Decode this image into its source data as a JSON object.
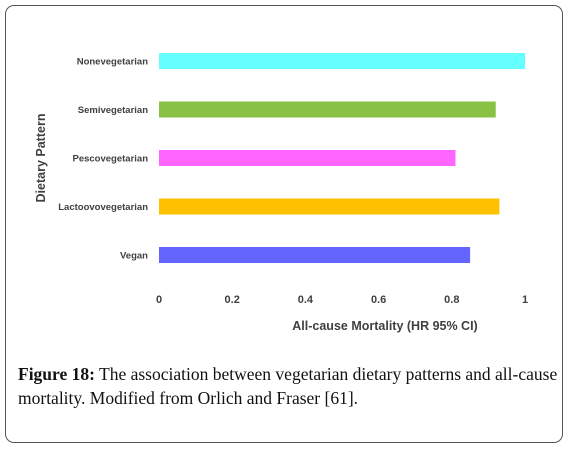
{
  "chart_data": {
    "type": "bar",
    "orientation": "horizontal",
    "categories": [
      "Nonevegetarian",
      "Semivegetarian",
      "Pescovegetarian",
      "Lactoovovegetarian",
      "Vegan"
    ],
    "values": [
      1.0,
      0.92,
      0.81,
      0.93,
      0.85
    ],
    "colors": [
      "#66ffff",
      "#88c144",
      "#ff66ff",
      "#ffc000",
      "#6464ff"
    ],
    "xlabel": "All-cause Mortality (HR 95% CI)",
    "ylabel": "Dietary Pattern",
    "xlim": [
      0,
      1
    ],
    "xticks": [
      0,
      0.2,
      0.4,
      0.6,
      0.8,
      1
    ],
    "xtick_labels": [
      "0",
      "0.2",
      "0.4",
      "0.6",
      "0.8",
      "1"
    ],
    "grid": false,
    "legend": "none"
  },
  "caption": {
    "figure_label": "Figure 18:",
    "text": " The association between vegetarian dietary patterns and all-cause mortality. Modified from Orlich and Fraser [61]."
  }
}
